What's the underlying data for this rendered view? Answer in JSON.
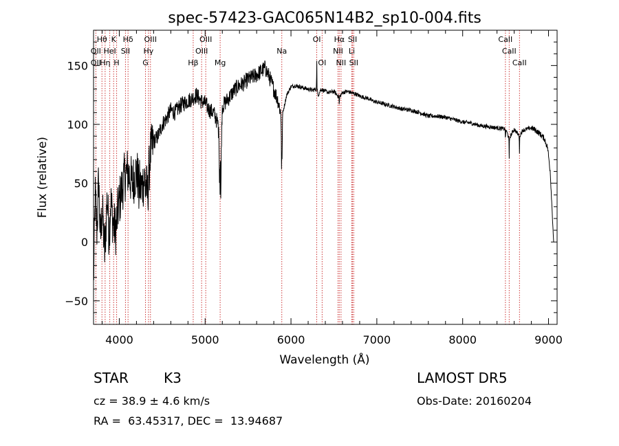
{
  "chart_data": {
    "type": "line",
    "title": "spec-57423-GAC065N14B2_sp10-004.fits",
    "xlabel": "Wavelength (Å)",
    "ylabel": "Flux (relative)",
    "xlim": [
      3700,
      9100
    ],
    "ylim": [
      -70,
      180
    ],
    "xticks": [
      4000,
      5000,
      6000,
      7000,
      8000,
      9000
    ],
    "yticks": [
      -50,
      0,
      50,
      100,
      150
    ],
    "grid": false,
    "line_color": "#000000",
    "marker_color": "#cc3333",
    "anchors": [
      [
        3700,
        -35
      ],
      [
        3720,
        40
      ],
      [
        3740,
        10
      ],
      [
        3760,
        55
      ],
      [
        3780,
        0
      ],
      [
        3800,
        30
      ],
      [
        3830,
        -10
      ],
      [
        3860,
        40
      ],
      [
        3880,
        5
      ],
      [
        3900,
        35
      ],
      [
        3930,
        15
      ],
      [
        3960,
        10
      ],
      [
        3990,
        30
      ],
      [
        4030,
        45
      ],
      [
        4060,
        55
      ],
      [
        4100,
        60
      ],
      [
        4150,
        50
      ],
      [
        4200,
        60
      ],
      [
        4250,
        45
      ],
      [
        4300,
        55
      ],
      [
        4330,
        40
      ],
      [
        4360,
        75
      ],
      [
        4400,
        85
      ],
      [
        4450,
        90
      ],
      [
        4500,
        100
      ],
      [
        4550,
        105
      ],
      [
        4600,
        112
      ],
      [
        4650,
        110
      ],
      [
        4700,
        115
      ],
      [
        4750,
        118
      ],
      [
        4800,
        120
      ],
      [
        4850,
        122
      ],
      [
        4900,
        125
      ],
      [
        4950,
        120
      ],
      [
        5000,
        118
      ],
      [
        5050,
        112
      ],
      [
        5100,
        110
      ],
      [
        5150,
        100
      ],
      [
        5183,
        65
      ],
      [
        5200,
        115
      ],
      [
        5250,
        120
      ],
      [
        5300,
        125
      ],
      [
        5350,
        130
      ],
      [
        5400,
        133
      ],
      [
        5450,
        135
      ],
      [
        5500,
        138
      ],
      [
        5550,
        140
      ],
      [
        5600,
        142
      ],
      [
        5650,
        145
      ],
      [
        5700,
        148
      ],
      [
        5750,
        140
      ],
      [
        5800,
        130
      ],
      [
        5850,
        120
      ],
      [
        5880,
        110
      ],
      [
        5893,
        90
      ],
      [
        5905,
        110
      ],
      [
        5950,
        125
      ],
      [
        6000,
        132
      ],
      [
        6050,
        133
      ],
      [
        6100,
        132
      ],
      [
        6150,
        131
      ],
      [
        6200,
        130
      ],
      [
        6250,
        129
      ],
      [
        6300,
        130
      ],
      [
        6320,
        125
      ],
      [
        6350,
        130
      ],
      [
        6400,
        128
      ],
      [
        6450,
        127
      ],
      [
        6500,
        128
      ],
      [
        6563,
        123
      ],
      [
        6600,
        127
      ],
      [
        6650,
        128
      ],
      [
        6700,
        127
      ],
      [
        6750,
        126
      ],
      [
        6800,
        124
      ],
      [
        6850,
        123
      ],
      [
        6900,
        122
      ],
      [
        6950,
        120
      ],
      [
        7000,
        119
      ],
      [
        7100,
        117
      ],
      [
        7200,
        115
      ],
      [
        7300,
        113
      ],
      [
        7400,
        112
      ],
      [
        7500,
        110
      ],
      [
        7600,
        107
      ],
      [
        7700,
        107
      ],
      [
        7800,
        106
      ],
      [
        7900,
        104
      ],
      [
        8000,
        102
      ],
      [
        8100,
        101
      ],
      [
        8200,
        99
      ],
      [
        8300,
        98
      ],
      [
        8400,
        97
      ],
      [
        8500,
        96
      ],
      [
        8542,
        88
      ],
      [
        8600,
        96
      ],
      [
        8662,
        90
      ],
      [
        8700,
        95
      ],
      [
        8800,
        97
      ],
      [
        8850,
        95
      ],
      [
        8900,
        92
      ],
      [
        8950,
        88
      ],
      [
        8990,
        80
      ],
      [
        9020,
        60
      ],
      [
        9040,
        30
      ],
      [
        9060,
        0
      ]
    ],
    "absorption_dips": [
      [
        4227,
        15
      ],
      [
        4305,
        15
      ],
      [
        5167,
        30
      ],
      [
        5173,
        30
      ],
      [
        5183,
        40
      ],
      [
        5890,
        30
      ],
      [
        5896,
        30
      ],
      [
        6563,
        8
      ],
      [
        8498,
        12
      ],
      [
        8542,
        18
      ],
      [
        8662,
        14
      ]
    ],
    "emission_spikes": [
      [
        6300,
        35
      ]
    ],
    "lines": [
      {
        "label": "Hθ",
        "wl": 3798,
        "row": 0
      },
      {
        "label": "K",
        "wl": 3934,
        "row": 0
      },
      {
        "label": "Hδ",
        "wl": 4102,
        "row": 0
      },
      {
        "label": "OIII",
        "wl": 4363,
        "row": 0
      },
      {
        "label": "OIII",
        "wl": 5007,
        "row": 0
      },
      {
        "label": "OI",
        "wl": 6300,
        "row": 0
      },
      {
        "label": "Hα",
        "wl": 6563,
        "row": 0
      },
      {
        "label": "SII",
        "wl": 6717,
        "row": 0
      },
      {
        "label": "CaII",
        "wl": 8498,
        "row": 0
      },
      {
        "label": "OII",
        "wl": 3727,
        "row": 1
      },
      {
        "label": "HeI",
        "wl": 3889,
        "row": 1
      },
      {
        "label": "SII",
        "wl": 4072,
        "row": 1
      },
      {
        "label": "Hγ",
        "wl": 4340,
        "row": 1
      },
      {
        "label": "OIII",
        "wl": 4959,
        "row": 1
      },
      {
        "label": "Na",
        "wl": 5893,
        "row": 1
      },
      {
        "label": "NII",
        "wl": 6548,
        "row": 1
      },
      {
        "label": "Li",
        "wl": 6708,
        "row": 1
      },
      {
        "label": "CaII",
        "wl": 8542,
        "row": 1
      },
      {
        "label": "OII",
        "wl": 3727,
        "row": 2
      },
      {
        "label": "Hη",
        "wl": 3835,
        "row": 2
      },
      {
        "label": "H",
        "wl": 3969,
        "row": 2
      },
      {
        "label": "G",
        "wl": 4305,
        "row": 2
      },
      {
        "label": "Hβ",
        "wl": 4861,
        "row": 2
      },
      {
        "label": "Mg",
        "wl": 5175,
        "row": 2
      },
      {
        "label": "OI",
        "wl": 6363,
        "row": 2
      },
      {
        "label": "NII",
        "wl": 6583,
        "row": 2
      },
      {
        "label": "SII",
        "wl": 6731,
        "row": 2
      },
      {
        "label": "CaII",
        "wl": 8662,
        "row": 2
      }
    ]
  },
  "info": {
    "class_label": "STAR",
    "subclass": "K3",
    "cz": "cz = 38.9 ± 4.6 km/s",
    "coords": "RA =  63.45317, DEC =  13.94687",
    "survey": "LAMOST DR5",
    "obs_date": "Obs-Date: 20160204"
  }
}
